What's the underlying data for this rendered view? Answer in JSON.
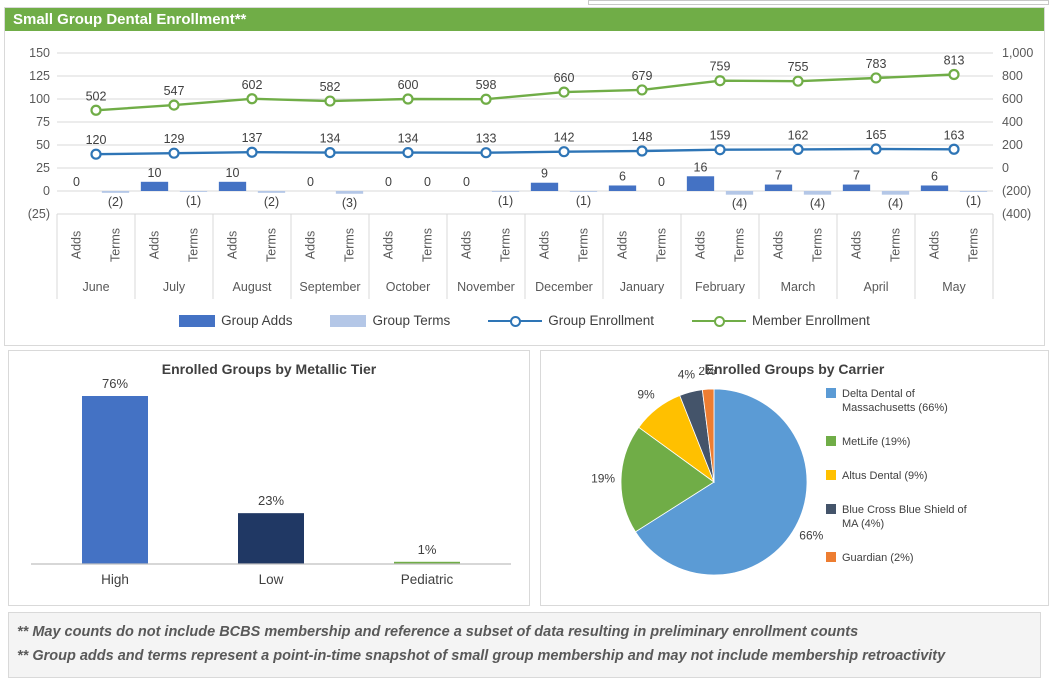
{
  "page": {
    "title": "Small Group Dental Enrollment**"
  },
  "footer": {
    "notes": [
      "** May counts do not include BCBS membership and reference a subset of data resulting in preliminary enrollment counts",
      "** Group adds and terms represent a point-in-time snapshot of small group membership and may not include membership retroactivity"
    ]
  },
  "chart_data": [
    {
      "id": "enrollment_combo",
      "type": "combo",
      "title": "",
      "categories": [
        "June",
        "July",
        "August",
        "September",
        "October",
        "November",
        "December",
        "January",
        "February",
        "March",
        "April",
        "May"
      ],
      "sub_categories": [
        "Adds",
        "Terms"
      ],
      "series": [
        {
          "name": "Group Adds",
          "type": "bar",
          "axis": "left",
          "color": "#4472C4",
          "values": [
            0,
            10,
            10,
            0,
            0,
            0,
            9,
            6,
            16,
            7,
            7,
            6
          ],
          "labels": [
            "0",
            "10",
            "10",
            "0",
            "0",
            "0",
            "9",
            "6",
            "16",
            "7",
            "7",
            "6"
          ]
        },
        {
          "name": "Group Terms",
          "type": "bar",
          "axis": "left",
          "color": "#B4C7E7",
          "values": [
            -2,
            -1,
            -2,
            -3,
            0,
            -1,
            -1,
            0,
            -4,
            -4,
            -4,
            -1
          ],
          "labels": [
            "(2)",
            "(1)",
            "(2)",
            "(3)",
            "0",
            "(1)",
            "(1)",
            "0",
            "(4)",
            "(4)",
            "(4)",
            "(1)"
          ]
        },
        {
          "name": "Group Enrollment",
          "type": "line",
          "axis": "right",
          "color": "#2E75B6",
          "values": [
            120,
            129,
            137,
            134,
            134,
            133,
            142,
            148,
            159,
            162,
            165,
            163
          ],
          "labels": [
            "120",
            "129",
            "137",
            "134",
            "134",
            "133",
            "142",
            "148",
            "159",
            "162",
            "165",
            "163"
          ]
        },
        {
          "name": "Member Enrollment",
          "type": "line",
          "axis": "right",
          "color": "#70AD47",
          "values": [
            502,
            547,
            602,
            582,
            600,
            598,
            660,
            679,
            759,
            755,
            783,
            813
          ],
          "labels": [
            "502",
            "547",
            "602",
            "582",
            "600",
            "598",
            "660",
            "679",
            "759",
            "755",
            "783",
            "813"
          ]
        }
      ],
      "left_axis": {
        "ticks": [
          "150",
          "125",
          "100",
          "75",
          "50",
          "25",
          "0",
          "(25)"
        ],
        "min": -25,
        "max": 150
      },
      "right_axis": {
        "ticks": [
          "1,000",
          "800",
          "600",
          "400",
          "200",
          "0",
          "(200)",
          "(400)"
        ],
        "min": -400,
        "max": 1000
      },
      "legend_position": "bottom",
      "grid": true
    },
    {
      "id": "metallic_tier",
      "type": "bar",
      "title": "Enrolled Groups by Metallic Tier",
      "categories": [
        "High",
        "Low",
        "Pediatric"
      ],
      "values": [
        76,
        23,
        1
      ],
      "labels": [
        "76%",
        "23%",
        "1%"
      ],
      "colors": [
        "#4472C4",
        "#203864",
        "#70AD47"
      ],
      "xlabel": "",
      "ylabel": "",
      "ylim": [
        0,
        80
      ],
      "grid": false
    },
    {
      "id": "carrier_pie",
      "type": "pie",
      "title": "Enrolled Groups by Carrier",
      "slices": [
        {
          "label": "Delta Dental of Massachusetts",
          "pct": 66,
          "color": "#5B9BD5",
          "legend": "Delta Dental of Massachusetts (66%)",
          "data_label": "66%"
        },
        {
          "label": "MetLife",
          "pct": 19,
          "color": "#70AD47",
          "legend": "MetLife (19%)",
          "data_label": "19%"
        },
        {
          "label": "Altus Dental",
          "pct": 9,
          "color": "#FFC000",
          "legend": "Altus Dental (9%)",
          "data_label": "9%"
        },
        {
          "label": "Blue Cross Blue Shield of MA",
          "pct": 4,
          "color": "#44546A",
          "legend": "Blue Cross Blue Shield of MA (4%)",
          "data_label": "4%"
        },
        {
          "label": "Guardian",
          "pct": 2,
          "color": "#ED7D31",
          "legend": "Guardian (2%)",
          "data_label": "2%"
        }
      ],
      "legend_position": "right",
      "start_angle_deg": 0,
      "direction": "clockwise"
    }
  ]
}
